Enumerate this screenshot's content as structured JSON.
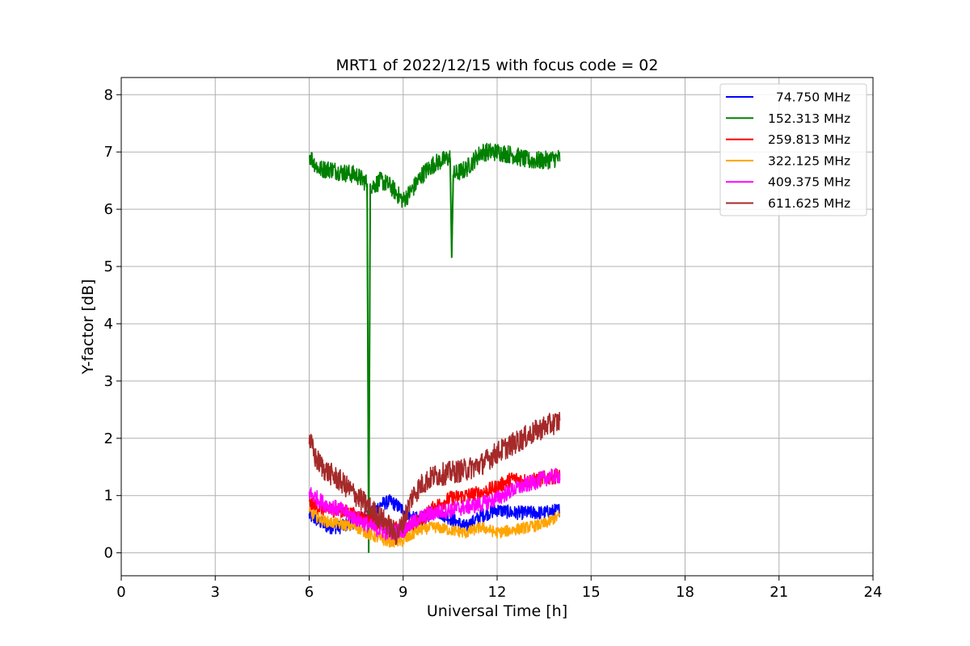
{
  "chart_data": {
    "type": "line",
    "title": "MRT1 of 2022/12/15 with focus code = 02",
    "xlabel": "Universal Time [h]",
    "ylabel": "Y-factor [dB]",
    "xlim": [
      0,
      24
    ],
    "ylim": [
      -0.4,
      8.3
    ],
    "xticks": [
      0,
      3,
      6,
      9,
      12,
      15,
      18,
      21,
      24
    ],
    "yticks": [
      0,
      1,
      2,
      3,
      4,
      5,
      6,
      7,
      8
    ],
    "grid": true,
    "legend_position": "top-right",
    "series": [
      {
        "name": "  74.750 MHz",
        "color": "#0000ff",
        "noise": 0.12,
        "x": [
          6.0,
          6.3,
          6.6,
          7.0,
          7.5,
          8.0,
          8.3,
          8.6,
          9.0,
          9.3,
          9.7,
          10.0,
          10.5,
          11.0,
          11.5,
          12.0,
          12.5,
          13.0,
          13.5,
          14.0
        ],
        "y": [
          0.65,
          0.55,
          0.45,
          0.45,
          0.55,
          0.7,
          0.85,
          0.9,
          0.75,
          0.6,
          0.6,
          0.75,
          0.6,
          0.45,
          0.65,
          0.75,
          0.7,
          0.7,
          0.7,
          0.75
        ]
      },
      {
        "name": "152.313 MHz",
        "color": "#008000",
        "noise": 0.16,
        "x": [
          6.0,
          6.3,
          6.7,
          7.0,
          7.5,
          7.85,
          7.9,
          7.95,
          8.0,
          8.3,
          8.6,
          9.0,
          9.3,
          9.6,
          10.0,
          10.5,
          10.55,
          10.6,
          11.0,
          11.5,
          12.0,
          12.5,
          13.0,
          13.5,
          14.0
        ],
        "y": [
          6.95,
          6.7,
          6.7,
          6.65,
          6.6,
          6.45,
          0.0,
          6.45,
          6.4,
          6.5,
          6.4,
          6.15,
          6.35,
          6.6,
          6.8,
          6.9,
          5.15,
          6.6,
          6.7,
          7.0,
          7.0,
          6.95,
          6.85,
          6.85,
          6.9
        ]
      },
      {
        "name": "259.813 MHz",
        "color": "#ff0000",
        "noise": 0.13,
        "x": [
          6.0,
          6.5,
          7.0,
          7.5,
          8.0,
          8.5,
          9.0,
          9.5,
          10.0,
          10.5,
          11.0,
          11.5,
          12.0,
          12.5,
          13.0,
          13.5,
          14.0
        ],
        "y": [
          0.85,
          0.75,
          0.75,
          0.65,
          0.55,
          0.45,
          0.4,
          0.55,
          0.8,
          0.95,
          1.0,
          1.05,
          1.15,
          1.3,
          1.25,
          1.3,
          1.35
        ]
      },
      {
        "name": "322.125 MHz",
        "color": "#ffa500",
        "noise": 0.1,
        "x": [
          6.0,
          6.5,
          7.0,
          7.5,
          8.0,
          8.5,
          9.0,
          9.5,
          10.0,
          10.5,
          11.0,
          11.5,
          12.0,
          12.5,
          13.0,
          13.5,
          14.0
        ],
        "y": [
          0.7,
          0.55,
          0.5,
          0.45,
          0.3,
          0.2,
          0.2,
          0.4,
          0.45,
          0.4,
          0.35,
          0.45,
          0.35,
          0.4,
          0.45,
          0.5,
          0.65
        ]
      },
      {
        "name": "409.375 MHz",
        "color": "#ff00ff",
        "noise": 0.14,
        "x": [
          6.0,
          6.5,
          7.0,
          7.5,
          8.0,
          8.5,
          9.0,
          9.5,
          10.0,
          10.5,
          11.0,
          11.5,
          12.0,
          12.5,
          13.0,
          13.5,
          14.0
        ],
        "y": [
          1.05,
          0.85,
          0.75,
          0.6,
          0.45,
          0.35,
          0.4,
          0.6,
          0.7,
          0.75,
          0.8,
          0.85,
          0.95,
          1.1,
          1.2,
          1.3,
          1.35
        ]
      },
      {
        "name": "611.625 MHz",
        "color": "#a52a2a",
        "noise": 0.2,
        "x": [
          6.0,
          6.2,
          6.5,
          7.0,
          7.5,
          8.0,
          8.5,
          8.8,
          9.0,
          9.3,
          9.6,
          10.0,
          10.5,
          11.0,
          11.5,
          12.0,
          12.5,
          13.0,
          13.5,
          14.0
        ],
        "y": [
          2.0,
          1.65,
          1.45,
          1.25,
          1.0,
          0.75,
          0.5,
          0.3,
          0.55,
          1.0,
          1.2,
          1.35,
          1.4,
          1.45,
          1.55,
          1.75,
          1.9,
          2.05,
          2.2,
          2.3
        ]
      }
    ]
  }
}
